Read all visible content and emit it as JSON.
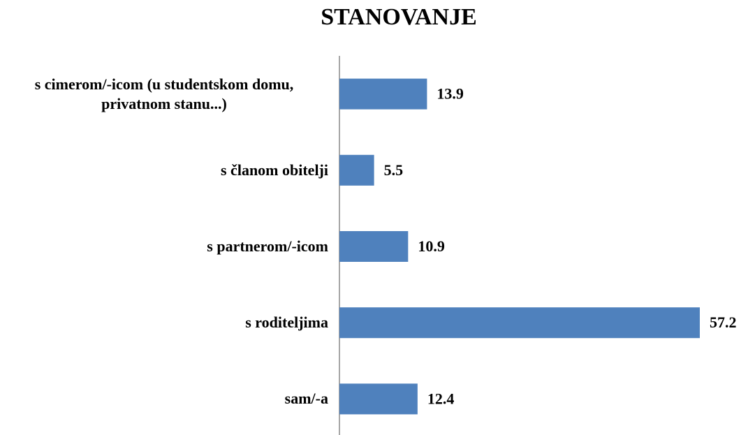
{
  "chart_data": {
    "type": "bar",
    "orientation": "horizontal",
    "title": "STANOVANJE",
    "categories": [
      "s cimerom/-icom (u studentskom domu, privatnom stanu...)",
      "s članom obitelji",
      "s partnerom/-icom",
      "s roditeljima",
      "sam/-a"
    ],
    "values": [
      13.9,
      5.5,
      10.9,
      57.2,
      12.4
    ],
    "color": "#4f81bd"
  }
}
